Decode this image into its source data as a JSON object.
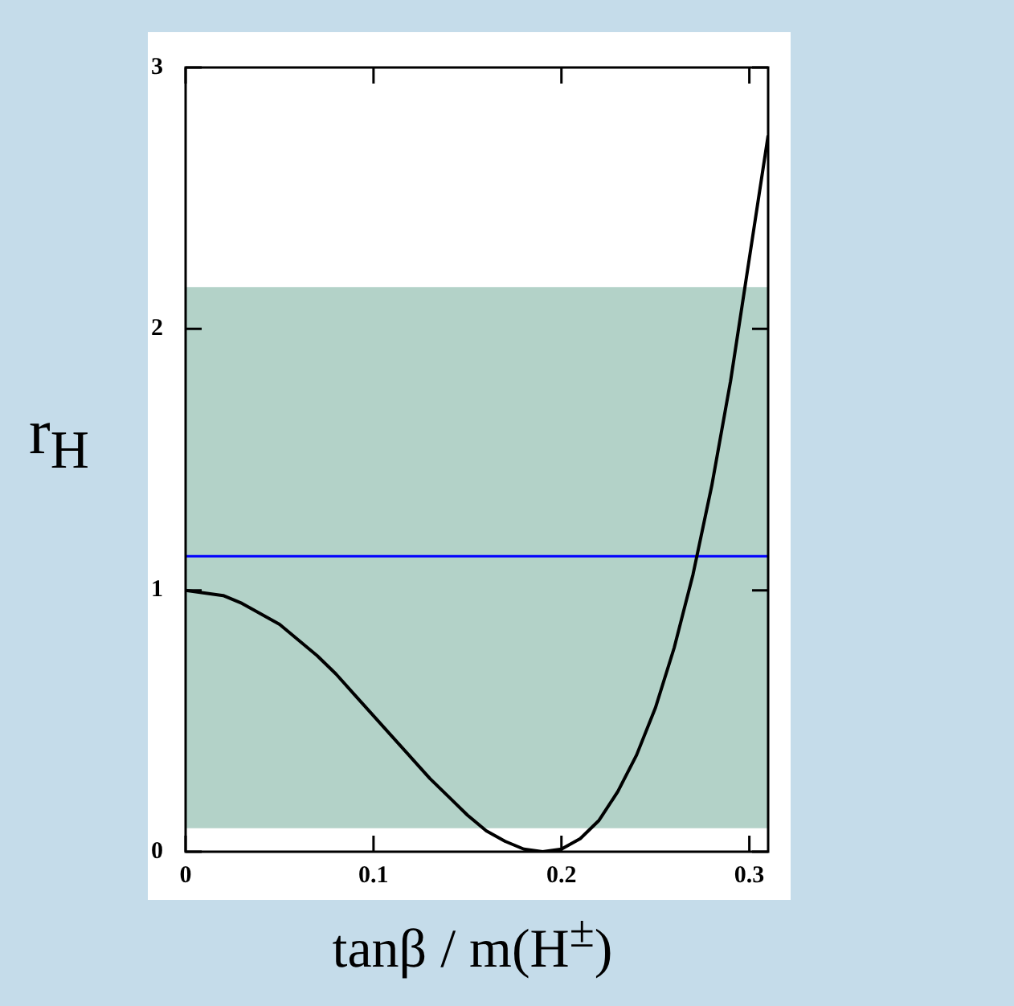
{
  "chart_data": {
    "type": "line",
    "xlabel": "tanβ / m(H$^{±}$)",
    "ylabel": "r$_{H}$",
    "x": [
      0,
      0.01,
      0.02,
      0.03,
      0.04,
      0.05,
      0.06,
      0.07,
      0.08,
      0.09,
      0.1,
      0.11,
      0.12,
      0.13,
      0.14,
      0.15,
      0.16,
      0.17,
      0.18,
      0.19,
      0.2,
      0.21,
      0.22,
      0.23,
      0.24,
      0.25,
      0.26,
      0.27,
      0.28,
      0.29,
      0.3,
      0.31
    ],
    "series": [
      {
        "color": "#000000",
        "values": [
          1,
          0.99,
          0.98,
          0.95,
          0.91,
          0.87,
          0.81,
          0.75,
          0.68,
          0.6,
          0.52,
          0.44,
          0.36,
          0.28,
          0.21,
          0.14,
          0.08,
          0.04,
          0.01,
          0,
          0.01,
          0.05,
          0.12,
          0.23,
          0.37,
          0.55,
          0.78,
          1.06,
          1.4,
          1.8,
          2.27,
          2.74
        ]
      }
    ],
    "xlim": [
      0,
      0.31
    ],
    "ylim": [
      0,
      3
    ],
    "xticks": [
      {
        "value": 0,
        "label": "0"
      },
      0.1,
      0.2,
      0.3
    ],
    "yticks": [
      0,
      1,
      2,
      3
    ],
    "ref_lines": [
      {
        "axis": "y",
        "value": 1.13,
        "color": "#0000ff"
      }
    ],
    "bands": [
      {
        "axis": "y",
        "from": 0.09,
        "to": 2.16,
        "color": "#b3d2c8"
      }
    ],
    "marker": "none",
    "line_style": "solid",
    "grid": false,
    "legend": false
  }
}
